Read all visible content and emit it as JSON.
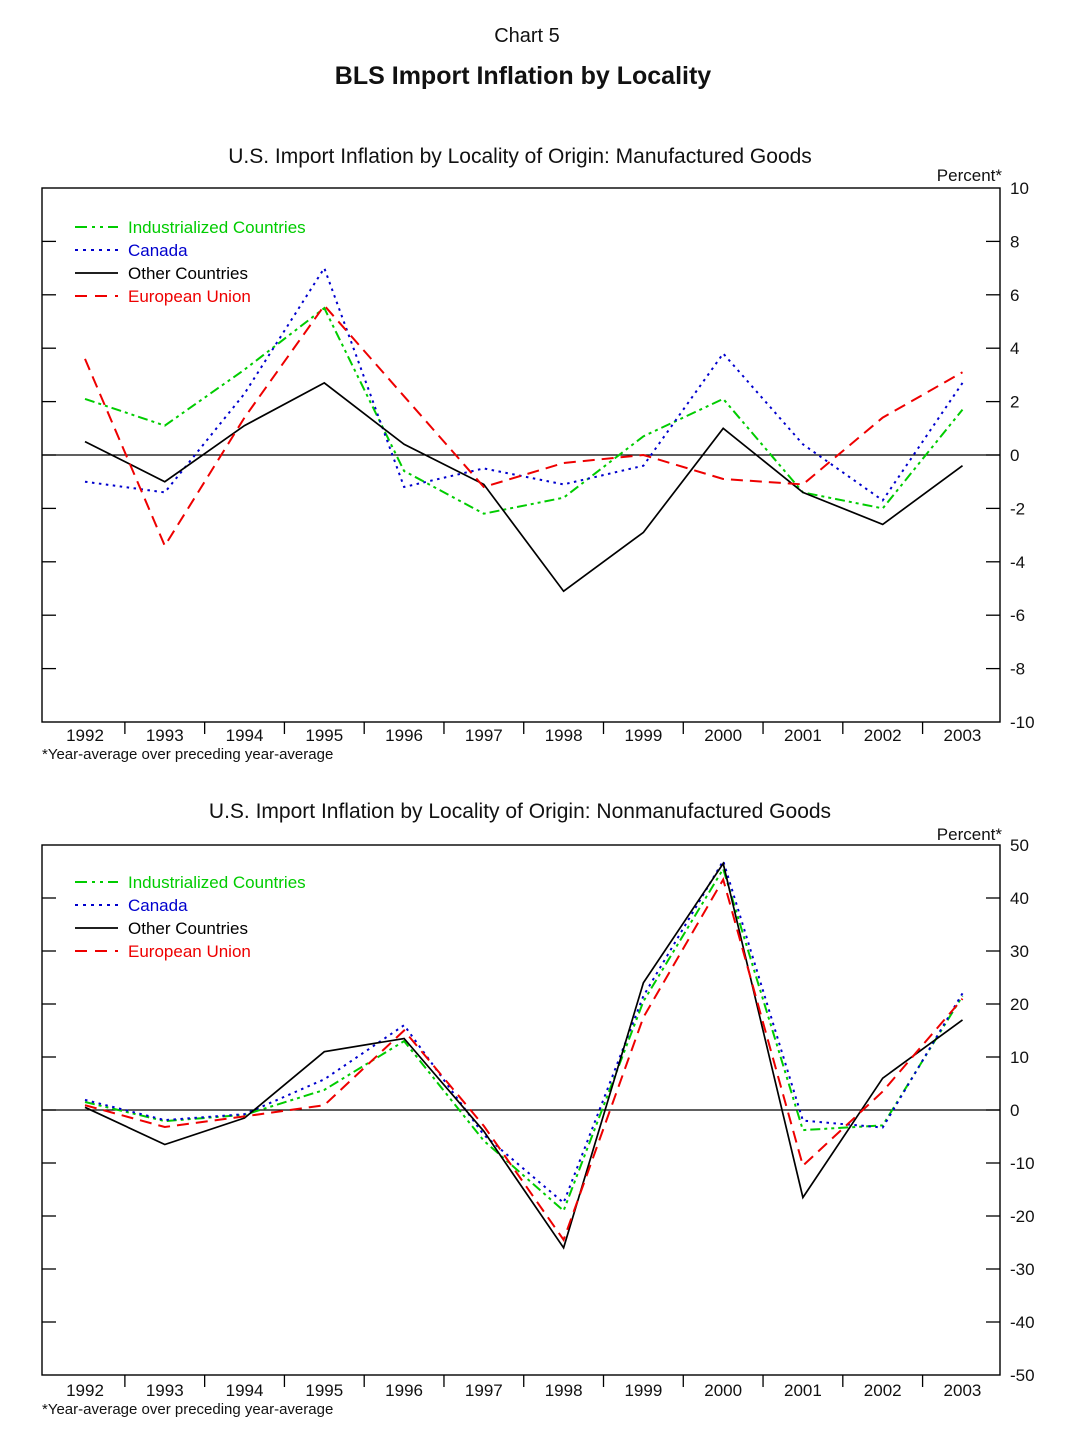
{
  "page": {
    "chart_label": "Chart 5",
    "title": "BLS Import Inflation by Locality"
  },
  "chart_data": [
    {
      "type": "line",
      "title": "U.S. Import Inflation by Locality of Origin: Manufactured Goods",
      "unit_label": "Percent*",
      "footnote": "*Year-average over preceding year-average",
      "x": [
        1992,
        1993,
        1994,
        1995,
        1996,
        1997,
        1998,
        1999,
        2000,
        2001,
        2002,
        2003
      ],
      "ylim": [
        -10,
        10
      ],
      "ytick_step": 2,
      "yticks": [
        10,
        8,
        6,
        4,
        2,
        0,
        -2,
        -4,
        -6,
        -8,
        -10
      ],
      "grid": "zero-line-only",
      "legend_position": "top-left",
      "series": [
        {
          "name": "Industrialized Countries",
          "color": "#00CC00",
          "style": "dash-dot-dot",
          "values": [
            2.1,
            1.1,
            3.2,
            5.5,
            -0.6,
            -2.2,
            -1.6,
            0.7,
            2.1,
            -1.4,
            -2.0,
            1.7
          ]
        },
        {
          "name": "Canada",
          "color": "#0000CD",
          "style": "dotted",
          "values": [
            -1.0,
            -1.4,
            2.3,
            7.0,
            -1.2,
            -0.5,
            -1.1,
            -0.4,
            3.8,
            0.4,
            -1.7,
            2.7
          ]
        },
        {
          "name": "Other Countries",
          "color": "#000000",
          "style": "solid",
          "values": [
            0.5,
            -1.0,
            1.1,
            2.7,
            0.4,
            -1.1,
            -5.1,
            -2.9,
            1.0,
            -1.4,
            -2.6,
            -0.4
          ]
        },
        {
          "name": "European Union",
          "color": "#EE0000",
          "style": "dashed",
          "values": [
            3.6,
            -3.4,
            1.4,
            5.6,
            2.2,
            -1.2,
            -0.3,
            0.0,
            -0.9,
            -1.1,
            1.4,
            3.1
          ]
        }
      ]
    },
    {
      "type": "line",
      "title": "U.S. Import Inflation by Locality of Origin: Nonmanufactured Goods",
      "unit_label": "Percent*",
      "footnote": "*Year-average over preceding year-average",
      "x": [
        1992,
        1993,
        1994,
        1995,
        1996,
        1997,
        1998,
        1999,
        2000,
        2001,
        2002,
        2003
      ],
      "ylim": [
        -50,
        50
      ],
      "ytick_step": 10,
      "yticks": [
        50,
        40,
        30,
        20,
        10,
        0,
        -10,
        -20,
        -30,
        -40,
        -50
      ],
      "grid": "zero-line-only",
      "legend_position": "top-left",
      "series": [
        {
          "name": "Industrialized Countries",
          "color": "#00CC00",
          "style": "dash-dot-dot",
          "values": [
            1.5,
            -2.1,
            -0.9,
            3.8,
            13.0,
            -5.8,
            -19.0,
            20.5,
            45.5,
            -3.8,
            -2.9,
            21.5
          ]
        },
        {
          "name": "Canada",
          "color": "#0000CD",
          "style": "dotted",
          "values": [
            1.9,
            -1.9,
            -0.8,
            5.8,
            16.0,
            -4.7,
            -17.5,
            21.5,
            47.0,
            -2.0,
            -3.3,
            22.0
          ]
        },
        {
          "name": "Other Countries",
          "color": "#000000",
          "style": "solid",
          "values": [
            0.5,
            -6.5,
            -1.5,
            11.0,
            13.5,
            -4.0,
            -26.0,
            24.0,
            46.5,
            -16.5,
            6.0,
            17.0
          ]
        },
        {
          "name": "European Union",
          "color": "#EE0000",
          "style": "dashed",
          "values": [
            0.9,
            -3.2,
            -1.2,
            0.9,
            15.0,
            -3.0,
            -24.5,
            17.5,
            43.5,
            -10.5,
            3.5,
            21.0
          ]
        }
      ]
    }
  ]
}
